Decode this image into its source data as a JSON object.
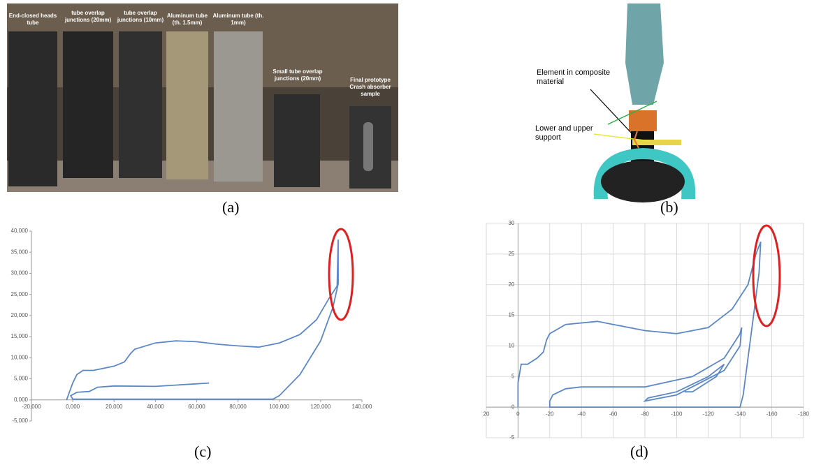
{
  "figure": {
    "panel_a": {
      "caption": "(a)",
      "labels": [
        "End-closed heads tube",
        "tube overlap junctions (20mm)",
        "tube overlap junctions (10mm)",
        "Aluminum tube (th. 1.5mm)",
        "Aluminum tube (th. 1mm)",
        "Small tube overlap junctions (20mm)",
        "Final prototype Crash absorber sample"
      ]
    },
    "panel_b": {
      "caption": "(b)",
      "labels": [
        "Element in composite material",
        "Lower and upper support"
      ]
    }
  },
  "chart_data": [
    {
      "type": "line",
      "caption": "(c)",
      "x": [
        -3000,
        0,
        2000,
        5000,
        10000,
        20000,
        25000,
        28000,
        30000,
        40000,
        50000,
        60000,
        70000,
        80000,
        90000,
        100000,
        110000,
        118000,
        124000,
        128000,
        128500,
        128500,
        126000,
        120000,
        110000,
        100000,
        97000,
        60000,
        20000,
        0,
        -1000,
        2000,
        8000,
        12000,
        20000,
        40000,
        66000
      ],
      "series": [
        {
          "color": "#5b87c5",
          "values": [
            0,
            4000,
            6000,
            7000,
            7000,
            8000,
            9000,
            11000,
            12000,
            13500,
            14000,
            13800,
            13200,
            12800,
            12500,
            13500,
            15500,
            19000,
            24000,
            27000,
            38000,
            27500,
            22000,
            14000,
            6000,
            1000,
            200,
            200,
            200,
            200,
            1000,
            1800,
            2000,
            3000,
            3300,
            3200,
            4000
          ]
        }
      ],
      "xlim": [
        -20000,
        140000
      ],
      "ylim": [
        -5000,
        40000
      ],
      "xticks": [
        {
          "value": -20000,
          "label": "-20,000"
        },
        {
          "value": 0,
          "label": "0,000"
        },
        {
          "value": 20000,
          "label": "20,000"
        },
        {
          "value": 40000,
          "label": "40,000"
        },
        {
          "value": 60000,
          "label": "60,000"
        },
        {
          "value": 80000,
          "label": "80,000"
        },
        {
          "value": 100000,
          "label": "100,000"
        },
        {
          "value": 120000,
          "label": "120,000"
        },
        {
          "value": 140000,
          "label": "140,000"
        }
      ],
      "yticks": [
        {
          "value": -5000,
          "label": "-5,000"
        },
        {
          "value": 0,
          "label": "0,000"
        },
        {
          "value": 5000,
          "label": "5,000"
        },
        {
          "value": 10000,
          "label": "10,000"
        },
        {
          "value": 15000,
          "label": "15,000"
        },
        {
          "value": 20000,
          "label": "20,000"
        },
        {
          "value": 25000,
          "label": "25,000"
        },
        {
          "value": 30000,
          "label": "30,000"
        },
        {
          "value": 35000,
          "label": "35,000"
        },
        {
          "value": 40000,
          "label": "40,000"
        }
      ],
      "grid": false
    },
    {
      "type": "line",
      "caption": "(d)",
      "x": [
        0,
        0,
        -2,
        -6,
        -12,
        -16,
        -18,
        -20,
        -30,
        -50,
        -60,
        -80,
        -100,
        -120,
        -135,
        -145,
        -150,
        -153,
        -152,
        -148,
        -145,
        -142,
        -140,
        -20,
        -20,
        -22,
        -30,
        -40,
        -80,
        -110,
        -130,
        -140,
        -141,
        -140,
        -130,
        -100,
        -80,
        -82,
        -100,
        -120,
        -130,
        -125,
        -110,
        -105
      ],
      "series": [
        {
          "color": "#5b87c5",
          "values": [
            0,
            4,
            7,
            7,
            8,
            9,
            11,
            12,
            13.5,
            14,
            13.5,
            12.5,
            12,
            13,
            16,
            20,
            25,
            27,
            22,
            14,
            8,
            2,
            0,
            0,
            1,
            2,
            3,
            3.3,
            3.3,
            5,
            8,
            12,
            13,
            10,
            6,
            2,
            1,
            1.5,
            2.5,
            5,
            7,
            5,
            2.5,
            2.5
          ]
        }
      ],
      "xlim": [
        20,
        -180
      ],
      "ylim": [
        -5,
        30
      ],
      "xticks": [
        20,
        0,
        -20,
        -40,
        -60,
        -80,
        -100,
        -120,
        -140,
        -160,
        -180
      ],
      "yticks": [
        -5,
        0,
        5,
        10,
        15,
        20,
        25,
        30
      ],
      "grid": true
    }
  ]
}
